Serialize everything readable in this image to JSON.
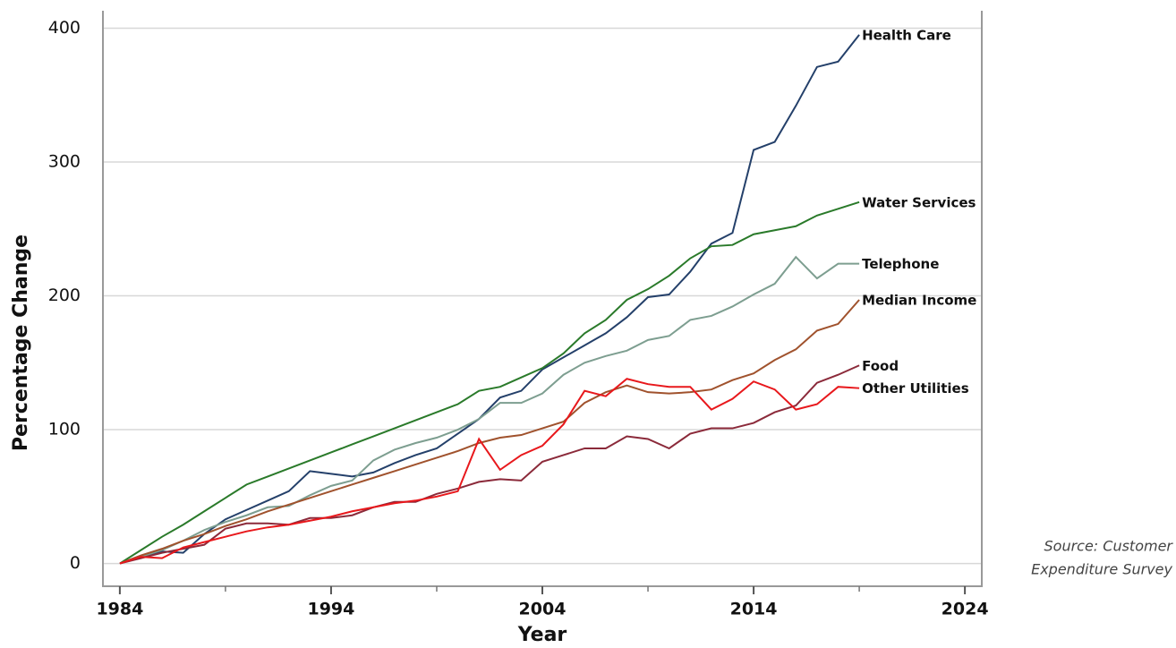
{
  "chart_data": {
    "type": "line",
    "x_label": "Year",
    "y_label": "Percentage Change",
    "source": [
      "Source: Customer",
      "Expenditure Survey"
    ],
    "x": [
      1984,
      1985,
      1986,
      1987,
      1988,
      1989,
      1990,
      1991,
      1992,
      1993,
      1994,
      1995,
      1996,
      1997,
      1998,
      1999,
      2000,
      2001,
      2002,
      2003,
      2004,
      2005,
      2006,
      2007,
      2008,
      2009,
      2010,
      2011,
      2012,
      2013,
      2014,
      2015,
      2016,
      2017,
      2018,
      2019
    ],
    "xlim": [
      1983.2,
      2024.8
    ],
    "xticks": [
      1984,
      1994,
      2004,
      2014,
      2024
    ],
    "xminor_ticks": [
      1989,
      1999,
      2009,
      2019
    ],
    "ylim": [
      -17,
      413
    ],
    "yticks": [
      0,
      100,
      200,
      300,
      400
    ],
    "grid": true,
    "series": [
      {
        "name": "Health Care",
        "color": "#24406a",
        "values": [
          0,
          5,
          9,
          8,
          22,
          33,
          40,
          47,
          54,
          69,
          67,
          65,
          68,
          75,
          81,
          86,
          97,
          108,
          124,
          129,
          145,
          154,
          163,
          172,
          184,
          199,
          201,
          218,
          239,
          247,
          309,
          315,
          342,
          371,
          375,
          395
        ]
      },
      {
        "name": "Water Services",
        "color": "#2a7a2a",
        "values": [
          0,
          10,
          20,
          29,
          39,
          49,
          59,
          65,
          71,
          77,
          83,
          89,
          95,
          101,
          107,
          113,
          119,
          129,
          132,
          139,
          146,
          157,
          172,
          182,
          197,
          205,
          215,
          228,
          237,
          238,
          246,
          249,
          252,
          260,
          265,
          270
        ]
      },
      {
        "name": "Telephone",
        "color": "#7d9e90",
        "values": [
          0,
          5,
          10,
          17,
          25,
          31,
          36,
          42,
          43,
          51,
          58,
          62,
          77,
          85,
          90,
          94,
          100,
          108,
          120,
          120,
          127,
          141,
          150,
          155,
          159,
          167,
          170,
          182,
          185,
          192,
          201,
          209,
          229,
          213,
          224,
          224
        ]
      },
      {
        "name": "Median Income",
        "color": "#a0522d",
        "values": [
          0,
          6,
          11,
          17,
          22,
          28,
          33,
          39,
          44,
          49,
          54,
          59,
          64,
          69,
          74,
          79,
          84,
          90,
          94,
          96,
          101,
          106,
          120,
          128,
          133,
          128,
          127,
          128,
          130,
          137,
          142,
          152,
          160,
          174,
          179,
          197
        ]
      },
      {
        "name": "Food",
        "color": "#8b2a3a",
        "values": [
          0,
          4,
          8,
          11,
          14,
          26,
          30,
          30,
          29,
          34,
          34,
          36,
          42,
          46,
          46,
          52,
          56,
          61,
          63,
          62,
          76,
          81,
          86,
          86,
          95,
          93,
          86,
          97,
          101,
          101,
          105,
          113,
          118,
          135,
          141,
          148
        ]
      },
      {
        "name": "Other Utilities",
        "color": "#e8181c",
        "values": [
          0,
          5,
          4,
          12,
          16,
          20,
          24,
          27,
          29,
          32,
          35,
          39,
          42,
          45,
          47,
          50,
          54,
          93,
          70,
          81,
          88,
          104,
          129,
          125,
          138,
          134,
          132,
          132,
          115,
          123,
          136,
          130,
          115,
          119,
          132,
          131
        ]
      }
    ]
  }
}
